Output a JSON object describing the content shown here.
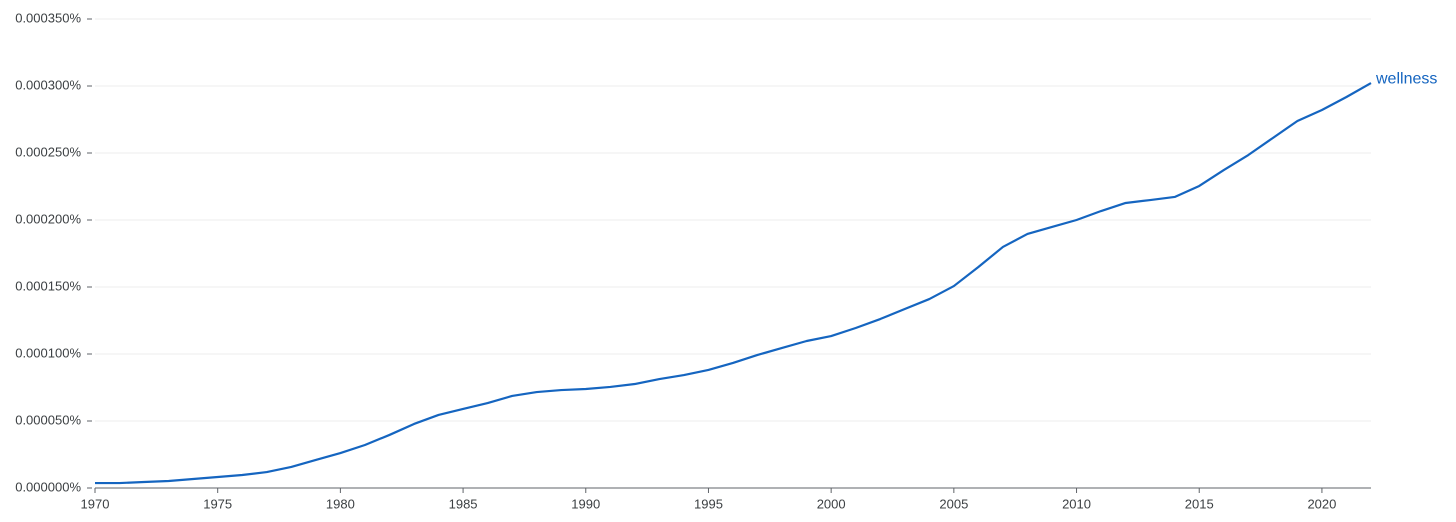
{
  "chart_data": {
    "type": "line",
    "x": [
      1970,
      1971,
      1972,
      1973,
      1974,
      1975,
      1976,
      1977,
      1978,
      1979,
      1980,
      1981,
      1982,
      1983,
      1984,
      1985,
      1986,
      1987,
      1988,
      1989,
      1990,
      1991,
      1992,
      1993,
      1994,
      1995,
      1996,
      1997,
      1998,
      1999,
      2000,
      2001,
      2002,
      2003,
      2004,
      2005,
      2006,
      2007,
      2008,
      2009,
      2010,
      2011,
      2012,
      2013,
      2014,
      2015,
      2016,
      2017,
      2018,
      2019,
      2020,
      2021,
      2022
    ],
    "series": [
      {
        "name": "wellness",
        "color": "#1565c0",
        "values": [
          3.7e-06,
          3.7e-06,
          4.5e-06,
          5.2e-06,
          6.7e-06,
          8.2e-06,
          9.7e-06,
          1.19e-05,
          1.57e-05,
          2.09e-05,
          2.61e-05,
          3.21e-05,
          3.96e-05,
          4.78e-05,
          5.45e-05,
          5.9e-05,
          6.34e-05,
          6.87e-05,
          7.16e-05,
          7.31e-05,
          7.39e-05,
          7.54e-05,
          7.76e-05,
          8.13e-05,
          8.43e-05,
          8.81e-05,
          9.33e-05,
          9.93e-05,
          0.0001045,
          0.0001097,
          0.0001134,
          0.0001194,
          0.0001261,
          0.0001336,
          0.000141,
          0.0001507,
          0.0001649,
          0.0001799,
          0.0001896,
          0.0001948,
          0.0002,
          0.0002067,
          0.0002127,
          0.0002149,
          0.0002172,
          0.0002254,
          0.0002373,
          0.0002485,
          0.0002612,
          0.0002739,
          0.0002821,
          0.0002918,
          0.0003022
        ]
      }
    ],
    "xlim": [
      1970,
      2022
    ],
    "xticks": [
      1970,
      1975,
      1980,
      1985,
      1990,
      1995,
      2000,
      2005,
      2010,
      2015,
      2020
    ],
    "ylim": [
      0,
      0.00035
    ],
    "yticks": [
      {
        "value": 0,
        "label": "0.000000%"
      },
      {
        "value": 5e-05,
        "label": "0.000050%"
      },
      {
        "value": 0.0001,
        "label": "0.000100%"
      },
      {
        "value": 0.00015,
        "label": "0.000150%"
      },
      {
        "value": 0.0002,
        "label": "0.000200%"
      },
      {
        "value": 0.00025,
        "label": "0.000250%"
      },
      {
        "value": 0.0003,
        "label": "0.000300%"
      },
      {
        "value": 0.00035,
        "label": "0.000350%"
      }
    ],
    "grid": true
  }
}
